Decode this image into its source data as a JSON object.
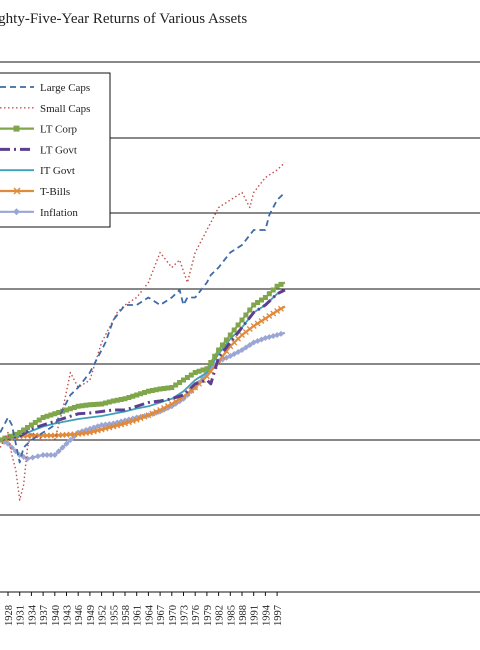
{
  "chart_data": {
    "type": "line",
    "title": "ighty-Five-Year Returns of Various Assets",
    "x_ticks": [
      "1928",
      "1931",
      "1934",
      "1937",
      "1940",
      "1943",
      "1946",
      "1949",
      "1952",
      "1955",
      "1958",
      "1961",
      "1964",
      "1967",
      "1970",
      "1973",
      "1976",
      "1979",
      "1982",
      "1985",
      "1988",
      "1991",
      "1994",
      "1997"
    ],
    "x_range": [
      1926,
      1999
    ],
    "y_range": [
      -2,
      3.3
    ],
    "y_scale": "log10",
    "grid": "horizontal",
    "legend_position": "top-left",
    "colors": {
      "Large Caps": "#3d6aa8",
      "Small Caps": "#c0504d",
      "LT Corp": "#7fa64b",
      "LT Govt": "#5e3f8f",
      "IT Govt": "#3fa0b8",
      "T-Bills": "#e08a3c",
      "Inflation": "#9aa6d6"
    },
    "series": [
      {
        "name": "Large Caps",
        "style": "dashed",
        "x": [
          1926,
          1928,
          1929,
          1931,
          1932,
          1934,
          1937,
          1940,
          1942,
          1944,
          1946,
          1949,
          1951,
          1953,
          1955,
          1958,
          1961,
          1964,
          1967,
          1970,
          1972,
          1973,
          1974,
          1976,
          1979,
          1980,
          1982,
          1985,
          1988,
          1991,
          1994,
          1995,
          1997,
          1999
        ],
        "y": [
          0.1,
          0.3,
          0.2,
          -0.3,
          -0.1,
          0.0,
          0.1,
          0.2,
          0.4,
          0.6,
          0.7,
          0.9,
          1.1,
          1.3,
          1.6,
          1.8,
          1.8,
          1.9,
          1.8,
          1.9,
          2.0,
          1.8,
          1.9,
          1.9,
          2.1,
          2.2,
          2.3,
          2.5,
          2.6,
          2.8,
          2.8,
          3.0,
          3.2,
          3.3
        ]
      },
      {
        "name": "Small Caps",
        "style": "dotted",
        "x": [
          1926,
          1928,
          1929,
          1930,
          1931,
          1932,
          1933,
          1934,
          1937,
          1940,
          1942,
          1944,
          1946,
          1949,
          1952,
          1955,
          1956,
          1958,
          1961,
          1964,
          1967,
          1970,
          1972,
          1974,
          1976,
          1979,
          1982,
          1985,
          1988,
          1990,
          1991,
          1994,
          1997,
          1999
        ],
        "y": [
          -0.1,
          0.1,
          -0.2,
          -0.4,
          -0.8,
          -0.6,
          -0.1,
          0.1,
          0.0,
          0.0,
          0.4,
          0.9,
          0.7,
          0.8,
          1.3,
          1.6,
          1.7,
          1.8,
          1.9,
          2.1,
          2.5,
          2.3,
          2.4,
          2.1,
          2.5,
          2.8,
          3.1,
          3.2,
          3.3,
          3.1,
          3.3,
          3.5,
          3.6,
          3.7
        ]
      },
      {
        "name": "LT Corp",
        "style": "square-markers",
        "x": [
          1926,
          1931,
          1934,
          1937,
          1940,
          1943,
          1946,
          1949,
          1952,
          1955,
          1958,
          1961,
          1964,
          1967,
          1970,
          1973,
          1976,
          1979,
          1982,
          1985,
          1988,
          1991,
          1994,
          1997,
          1999
        ],
        "y": [
          0.0,
          0.1,
          0.2,
          0.3,
          0.35,
          0.4,
          0.45,
          0.47,
          0.48,
          0.52,
          0.55,
          0.6,
          0.65,
          0.68,
          0.7,
          0.8,
          0.9,
          0.95,
          1.2,
          1.4,
          1.6,
          1.8,
          1.9,
          2.05,
          2.1
        ]
      },
      {
        "name": "LT Govt",
        "style": "dash-dot",
        "x": [
          1926,
          1931,
          1934,
          1937,
          1940,
          1943,
          1946,
          1949,
          1952,
          1955,
          1958,
          1961,
          1964,
          1967,
          1970,
          1973,
          1976,
          1979,
          1980,
          1982,
          1985,
          1988,
          1991,
          1994,
          1997,
          1999
        ],
        "y": [
          0.0,
          0.05,
          0.15,
          0.2,
          0.25,
          0.3,
          0.35,
          0.36,
          0.38,
          0.4,
          0.4,
          0.45,
          0.5,
          0.52,
          0.55,
          0.6,
          0.75,
          0.8,
          0.75,
          1.1,
          1.3,
          1.5,
          1.7,
          1.8,
          1.95,
          2.0
        ]
      },
      {
        "name": "IT Govt",
        "style": "solid",
        "x": [
          1926,
          1931,
          1934,
          1937,
          1940,
          1943,
          1946,
          1949,
          1952,
          1955,
          1958,
          1961,
          1964,
          1967,
          1970,
          1973,
          1976,
          1979,
          1982,
          1985,
          1988,
          1991,
          1994,
          1997,
          1999
        ],
        "y": [
          0.0,
          0.05,
          0.12,
          0.18,
          0.22,
          0.25,
          0.28,
          0.3,
          0.32,
          0.35,
          0.38,
          0.42,
          0.45,
          0.5,
          0.55,
          0.65,
          0.8,
          0.9,
          1.15,
          1.35,
          1.5,
          1.7,
          1.8,
          1.95,
          2.0
        ]
      },
      {
        "name": "T-Bills",
        "style": "x-markers",
        "x": [
          1926,
          1931,
          1934,
          1937,
          1940,
          1943,
          1946,
          1949,
          1952,
          1955,
          1958,
          1961,
          1964,
          1967,
          1970,
          1973,
          1976,
          1979,
          1982,
          1985,
          1988,
          1991,
          1994,
          1997,
          1999
        ],
        "y": [
          0.0,
          0.05,
          0.06,
          0.06,
          0.06,
          0.07,
          0.08,
          0.1,
          0.14,
          0.18,
          0.22,
          0.27,
          0.33,
          0.4,
          0.48,
          0.58,
          0.7,
          0.85,
          1.05,
          1.25,
          1.4,
          1.52,
          1.62,
          1.72,
          1.78
        ]
      },
      {
        "name": "Inflation",
        "style": "diamond-markers",
        "x": [
          1926,
          1928,
          1931,
          1933,
          1937,
          1940,
          1943,
          1946,
          1949,
          1952,
          1955,
          1958,
          1961,
          1964,
          1967,
          1970,
          1973,
          1976,
          1979,
          1982,
          1985,
          1988,
          1991,
          1994,
          1997,
          1999
        ],
        "y": [
          0.0,
          -0.05,
          -0.2,
          -0.25,
          -0.2,
          -0.2,
          -0.05,
          0.1,
          0.15,
          0.2,
          0.22,
          0.26,
          0.3,
          0.33,
          0.38,
          0.45,
          0.55,
          0.7,
          0.9,
          1.05,
          1.12,
          1.2,
          1.3,
          1.36,
          1.4,
          1.43
        ]
      }
    ]
  }
}
